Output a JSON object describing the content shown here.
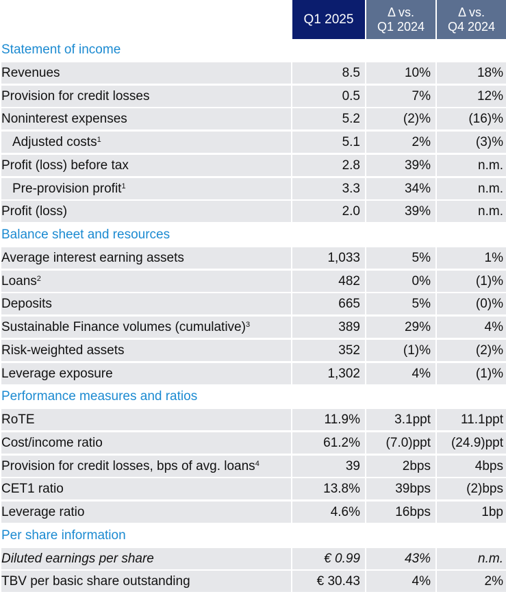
{
  "header": {
    "col1": "Q1 2025",
    "col2_line1": "Δ vs.",
    "col2_line2": "Q1 2024",
    "col3_line1": "Δ vs.",
    "col3_line2": "Q4 2024"
  },
  "sections": [
    {
      "title": "Statement of income",
      "rows": [
        {
          "label": "Revenues",
          "sup": "",
          "v1": "8.5",
          "v2": "10%",
          "v3": "18%"
        },
        {
          "label": "Provision for credit losses",
          "sup": "",
          "v1": "0.5",
          "v2": "7%",
          "v3": "12%"
        },
        {
          "label": "Noninterest expenses",
          "sup": "",
          "v1": "5.2",
          "v2": "(2)%",
          "v3": "(16)%"
        },
        {
          "label": "Adjusted costs",
          "sup": "1",
          "v1": "5.1",
          "v2": "2%",
          "v3": "(3)%",
          "indent": true
        },
        {
          "label": "Profit (loss) before tax",
          "sup": "",
          "v1": "2.8",
          "v2": "39%",
          "v3": "n.m."
        },
        {
          "label": "Pre-provision profit",
          "sup": "1",
          "v1": "3.3",
          "v2": "34%",
          "v3": "n.m.",
          "indent": true
        },
        {
          "label": "Profit (loss)",
          "sup": "",
          "v1": "2.0",
          "v2": "39%",
          "v3": "n.m."
        }
      ]
    },
    {
      "title": "Balance sheet and resources",
      "rows": [
        {
          "label": "Average interest earning assets",
          "sup": "",
          "v1": "1,033",
          "v2": "5%",
          "v3": "1%"
        },
        {
          "label": "Loans",
          "sup": "2",
          "v1": "482",
          "v2": "0%",
          "v3": "(1)%"
        },
        {
          "label": "Deposits",
          "sup": "",
          "v1": "665",
          "v2": "5%",
          "v3": "(0)%"
        },
        {
          "label": "Sustainable Finance volumes (cumulative)",
          "sup": "3",
          "v1": "389",
          "v2": "29%",
          "v3": "4%"
        },
        {
          "label": "Risk-weighted assets",
          "sup": "",
          "v1": "352",
          "v2": "(1)%",
          "v3": "(2)%"
        },
        {
          "label": "Leverage exposure",
          "sup": "",
          "v1": "1,302",
          "v2": "4%",
          "v3": "(1)%"
        }
      ]
    },
    {
      "title": "Performance measures and ratios",
      "rows": [
        {
          "label": "RoTE",
          "sup": "",
          "v1": "11.9%",
          "v2": "3.1ppt",
          "v3": "11.1ppt"
        },
        {
          "label": "Cost/income ratio",
          "sup": "",
          "v1": "61.2%",
          "v2": "(7.0)ppt",
          "v3": "(24.9)ppt"
        },
        {
          "label": "Provision for credit losses, bps of avg. loans",
          "sup": "4",
          "v1": "39",
          "v2": "2bps",
          "v3": "4bps"
        },
        {
          "label": "CET1 ratio",
          "sup": "",
          "v1": "13.8%",
          "v2": "39bps",
          "v3": "(2)bps"
        },
        {
          "label": "Leverage ratio",
          "sup": "",
          "v1": "4.6%",
          "v2": "16bps",
          "v3": "1bp"
        }
      ]
    },
    {
      "title": "Per share information",
      "rows": [
        {
          "label": "Diluted earnings per share",
          "sup": "",
          "v1": "€ 0.99",
          "v2": "43%",
          "v3": "n.m.",
          "italic": true
        },
        {
          "label": "TBV per basic share outstanding",
          "sup": "",
          "v1": "€ 30.43",
          "v2": "4%",
          "v3": "2%"
        }
      ]
    }
  ]
}
